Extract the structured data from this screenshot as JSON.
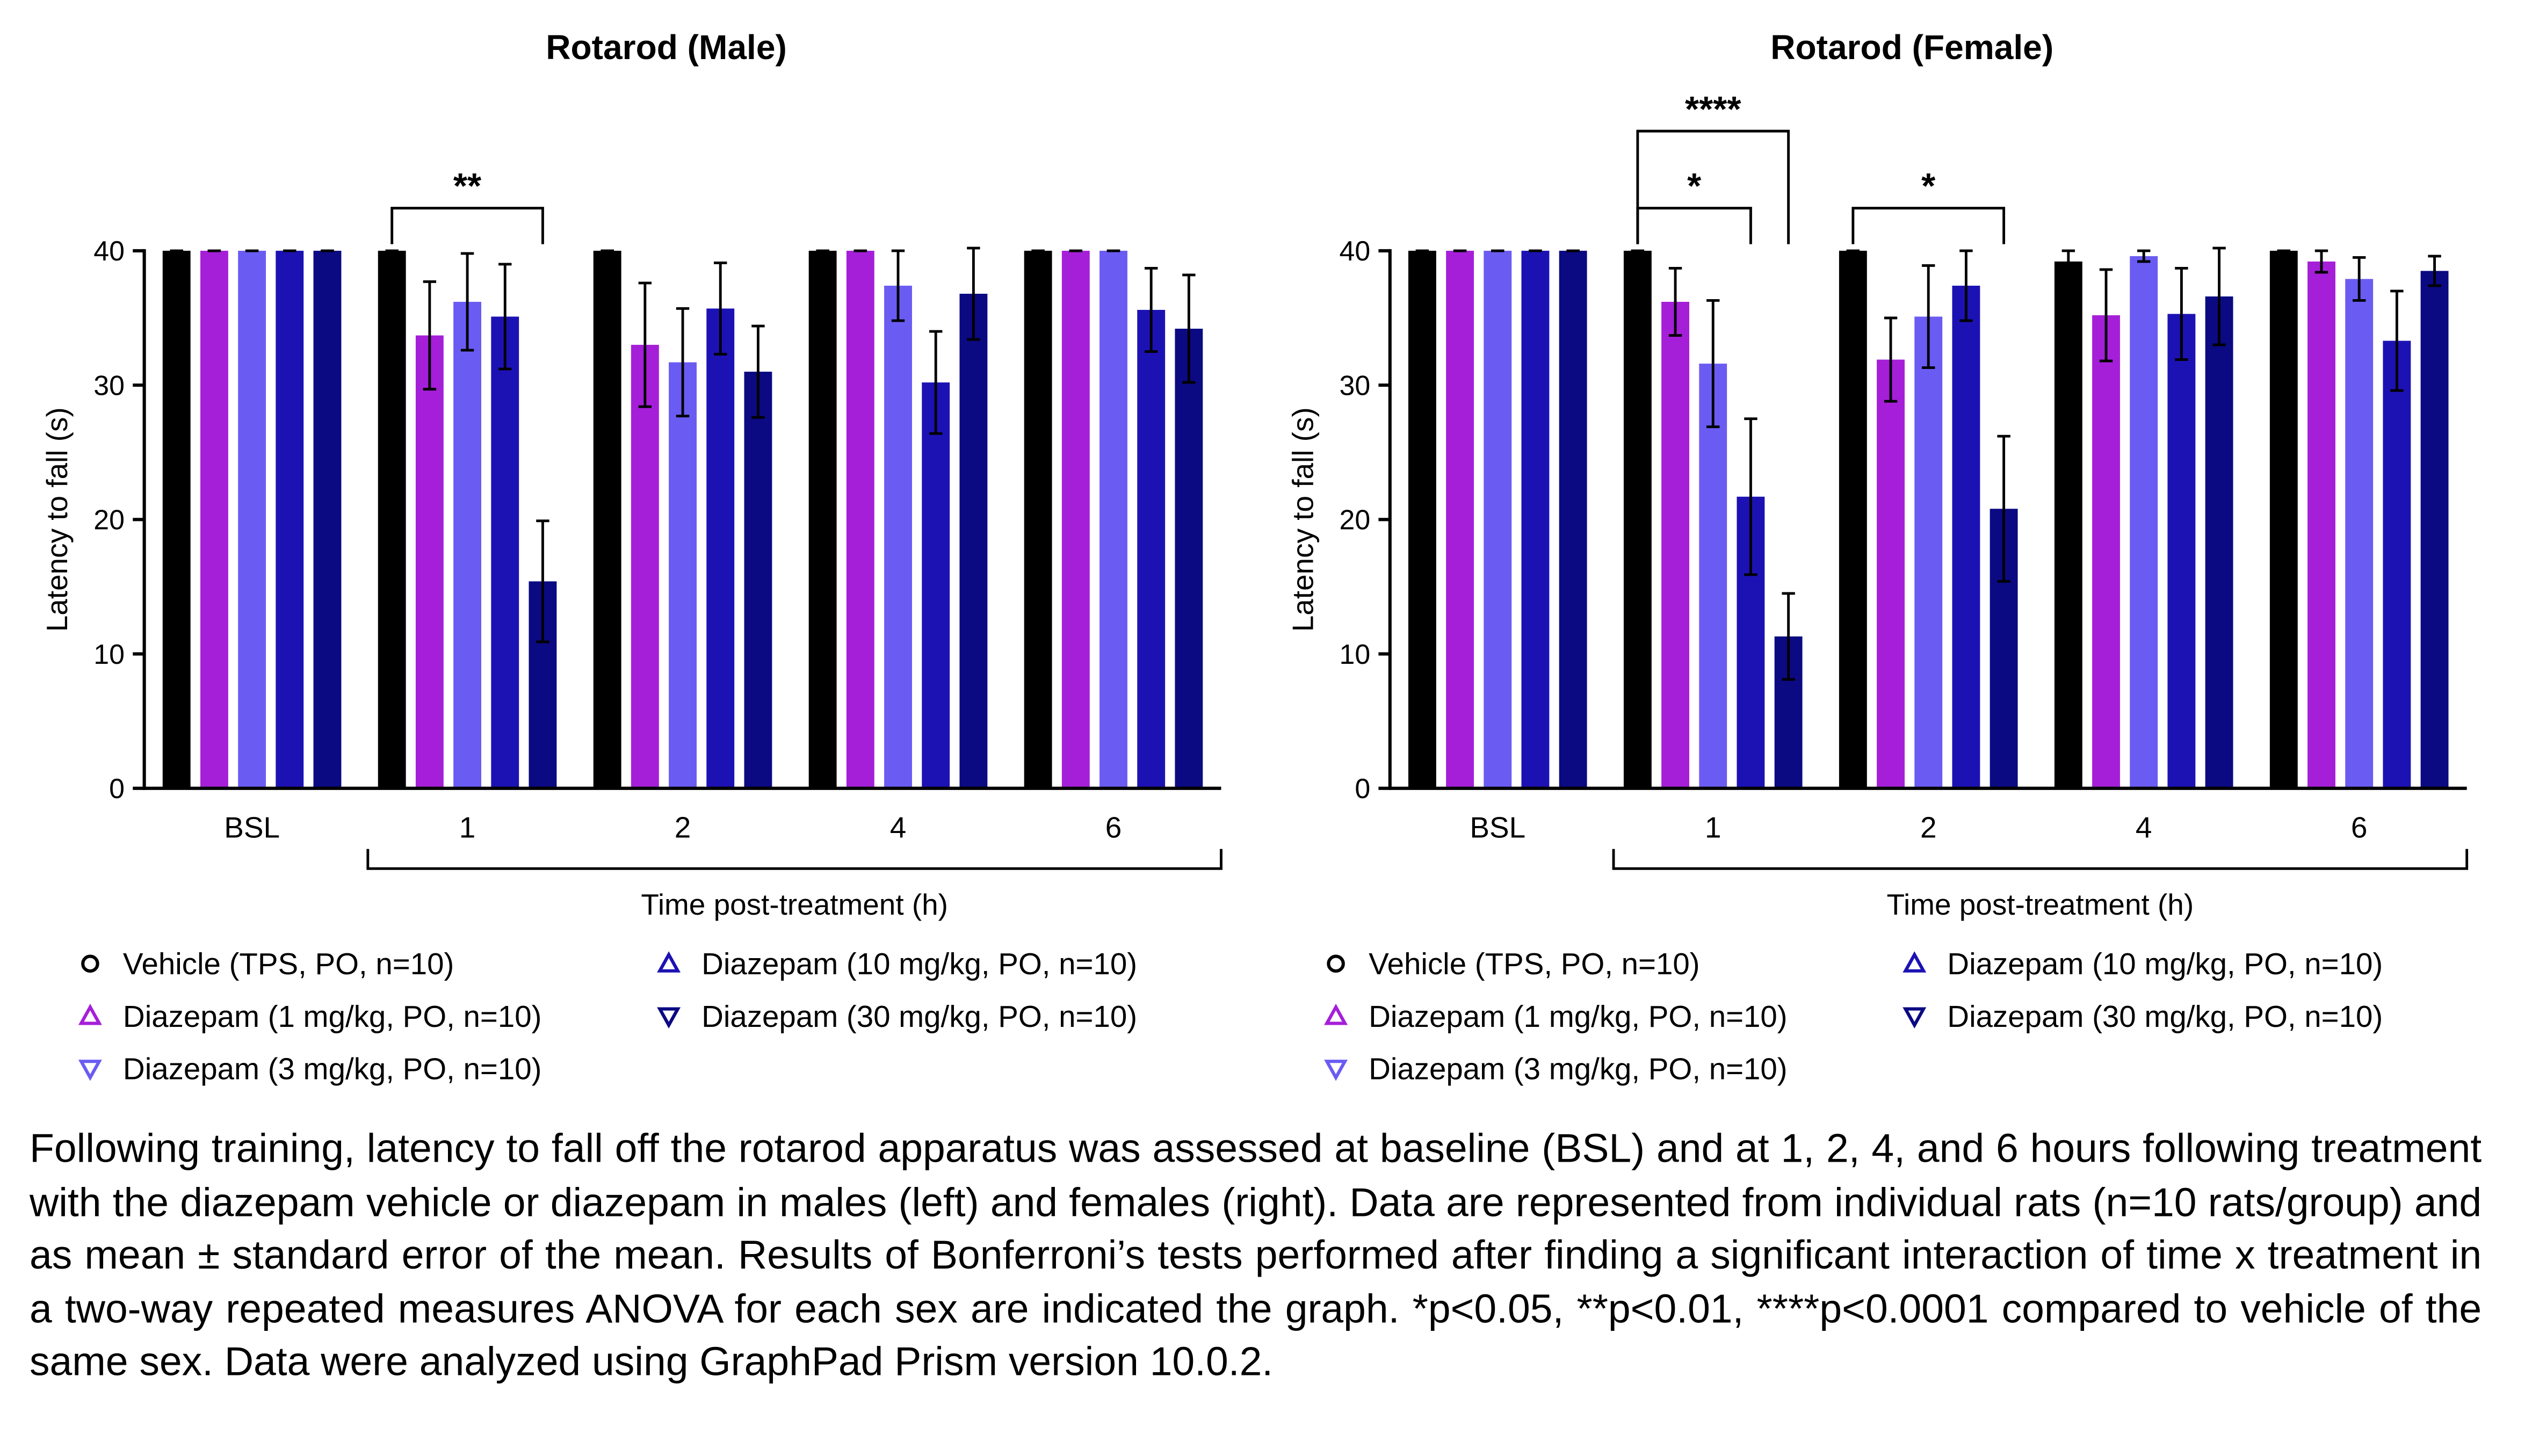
{
  "chart_data": [
    {
      "type": "bar",
      "title": "Rotarod (Male)",
      "x_label": "Time post-treatment (h)",
      "y_label": "Latency to fall (s)",
      "categories": [
        "BSL",
        "1",
        "2",
        "4",
        "6"
      ],
      "ylim": [
        0,
        40
      ],
      "yticks": [
        0,
        10,
        20,
        30,
        40
      ],
      "series": [
        {
          "name": "Vehicle (TPS, PO, n=10)",
          "color": "#000000",
          "marker": "circle",
          "values": [
            40,
            40,
            40,
            40,
            40
          ],
          "errors": [
            0,
            0,
            0,
            0,
            0
          ]
        },
        {
          "name": "Diazepam (1 mg/kg, PO, n=10)",
          "color": "#a51fd8",
          "marker": "triangle-up",
          "values": [
            40,
            33.7,
            33,
            40,
            40
          ],
          "errors": [
            0,
            4,
            4.6,
            0,
            0
          ]
        },
        {
          "name": "Diazepam (3 mg/kg, PO, n=10)",
          "color": "#6a5cf2",
          "marker": "triangle-down",
          "values": [
            40,
            36.2,
            31.7,
            37.4,
            40
          ],
          "errors": [
            0,
            3.6,
            4,
            2.6,
            0
          ]
        },
        {
          "name": "Diazepam (10 mg/kg, PO, n=10)",
          "color": "#1c12b4",
          "marker": "triangle-up",
          "values": [
            40,
            35.1,
            35.7,
            30.2,
            35.6
          ],
          "errors": [
            0,
            3.9,
            3.4,
            3.8,
            3.1
          ]
        },
        {
          "name": "Diazepam (30 mg/kg, PO, n=10)",
          "color": "#0b0a82",
          "marker": "triangle-down",
          "values": [
            40,
            15.4,
            31,
            36.8,
            34.2
          ],
          "errors": [
            0,
            4.5,
            3.4,
            3.4,
            4
          ]
        }
      ],
      "annotations": [
        "**"
      ]
    },
    {
      "type": "bar",
      "title": "Rotarod (Female)",
      "x_label": "Time post-treatment (h)",
      "y_label": "Latency to fall (s)",
      "categories": [
        "BSL",
        "1",
        "2",
        "4",
        "6"
      ],
      "ylim": [
        0,
        40
      ],
      "yticks": [
        0,
        10,
        20,
        30,
        40
      ],
      "series": [
        {
          "name": "Vehicle (TPS, PO, n=10)",
          "color": "#000000",
          "marker": "circle",
          "values": [
            40,
            40,
            40,
            39.2,
            40
          ],
          "errors": [
            0,
            0,
            0,
            0.8,
            0
          ]
        },
        {
          "name": "Diazepam (1 mg/kg, PO, n=10)",
          "color": "#a51fd8",
          "marker": "triangle-up",
          "values": [
            40,
            36.2,
            31.9,
            35.2,
            39.2
          ],
          "errors": [
            0,
            2.5,
            3.1,
            3.4,
            0.8
          ]
        },
        {
          "name": "Diazepam (3 mg/kg, PO, n=10)",
          "color": "#6a5cf2",
          "marker": "triangle-down",
          "values": [
            40,
            31.6,
            35.1,
            39.6,
            37.9
          ],
          "errors": [
            0,
            4.7,
            3.8,
            0.4,
            1.6
          ]
        },
        {
          "name": "Diazepam (10 mg/kg, PO, n=10)",
          "color": "#1c12b4",
          "marker": "triangle-up",
          "values": [
            40,
            21.7,
            37.4,
            35.3,
            33.3
          ],
          "errors": [
            0,
            5.8,
            2.6,
            3.4,
            3.7
          ]
        },
        {
          "name": "Diazepam (30 mg/kg, PO, n=10)",
          "color": "#0b0a82",
          "marker": "triangle-down",
          "values": [
            40,
            11.3,
            20.8,
            36.6,
            38.5
          ],
          "errors": [
            0,
            3.2,
            5.4,
            3.6,
            1.1
          ]
        }
      ],
      "annotations": [
        "*",
        "****",
        "*"
      ]
    }
  ],
  "caption": "Following training, latency to fall off the rotarod apparatus was assessed at baseline (BSL) and at 1, 2, 4, and 6 hours following treatment with the diazepam vehicle or diazepam in males (left) and females (right). Data are represented from individual rats (n=10 rats/group) and as mean ± standard error of the mean. Results of Bonferroni’s tests performed after finding a significant interaction of time x treatment in a two-way repeated measures ANOVA for each sex are indicated the graph. *p<0.05, **p<0.01, ****p<0.0001 compared to vehicle of the same sex. Data were analyzed using GraphPad Prism version 10.0.2."
}
